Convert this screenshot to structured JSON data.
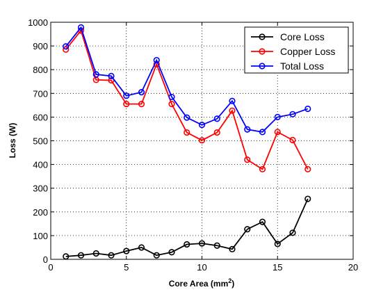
{
  "chart_data": {
    "type": "line",
    "xlabel": "Core Area (mm",
    "xlabel_sup": "2",
    "xlabel_suffix": ")",
    "ylabel": "Loss (W)",
    "xlim": [
      0,
      20
    ],
    "ylim": [
      0,
      1000
    ],
    "xticks": [
      0,
      5,
      10,
      15,
      20
    ],
    "yticks": [
      0,
      100,
      200,
      300,
      400,
      500,
      600,
      700,
      800,
      900,
      1000
    ],
    "grid": true,
    "legend_position": "top-right",
    "x": [
      1,
      2,
      3,
      4,
      5,
      6,
      7,
      8,
      9,
      10,
      11,
      12,
      13,
      14,
      15,
      16,
      17
    ],
    "series": [
      {
        "name": "Core Loss",
        "color": "#000000",
        "values": [
          12,
          17,
          25,
          17,
          35,
          50,
          17,
          30,
          63,
          67,
          58,
          43,
          127,
          158,
          65,
          112,
          255
        ]
      },
      {
        "name": "Copper Loss",
        "color": "#ff0000",
        "values": [
          885,
          965,
          757,
          755,
          655,
          655,
          823,
          655,
          535,
          502,
          535,
          627,
          420,
          380,
          537,
          503,
          380
        ]
      },
      {
        "name": "Total Loss",
        "color": "#0000ff",
        "values": [
          898,
          978,
          780,
          773,
          690,
          705,
          840,
          685,
          598,
          567,
          593,
          668,
          548,
          537,
          600,
          612,
          635
        ]
      }
    ]
  }
}
